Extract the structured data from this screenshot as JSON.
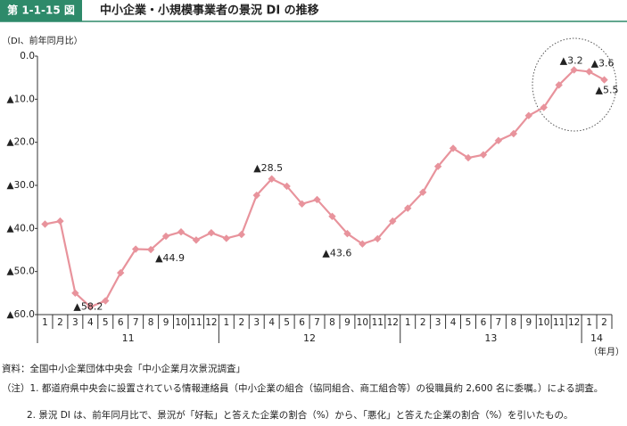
{
  "figure_label": "第 1-1-15 図",
  "chart_data": {
    "type": "line",
    "title": "中小企業・小規模事業者の景況 DI の推移",
    "y_label": "（DI、前年同月比）",
    "x_label": "（年月）",
    "categories": [
      "1",
      "2",
      "3",
      "4",
      "5",
      "6",
      "7",
      "8",
      "9",
      "10",
      "11",
      "12",
      "1",
      "2",
      "3",
      "4",
      "5",
      "6",
      "7",
      "8",
      "9",
      "10",
      "11",
      "12",
      "1",
      "2",
      "3",
      "4",
      "5",
      "6",
      "7",
      "8",
      "9",
      "10",
      "11",
      "12",
      "1",
      "2"
    ],
    "year_labels": [
      "11",
      "12",
      "13",
      "14"
    ],
    "series": [
      {
        "color": "#e8939c",
        "values": [
          -39,
          -38.3,
          -55,
          -58.2,
          -56.8,
          -50.3,
          -44.8,
          -44.9,
          -41.8,
          -40.8,
          -42.7,
          -41,
          -42.3,
          -41.4,
          -32.3,
          -28.5,
          -30.2,
          -34.3,
          -33.3,
          -37.2,
          -41.2,
          -43.6,
          -42.4,
          -38.3,
          -35.3,
          -31.6,
          -25.6,
          -21.4,
          -23.6,
          -22.9,
          -19.6,
          -18,
          -13.8,
          -11.9,
          -6.7,
          -3.2,
          -3.6,
          -5.5
        ],
        "value_labels": [
          null,
          null,
          null,
          "▲58.2",
          null,
          null,
          null,
          "▲44.9",
          null,
          null,
          null,
          null,
          null,
          null,
          null,
          "▲28.5",
          null,
          null,
          null,
          null,
          null,
          "▲43.6",
          null,
          null,
          null,
          null,
          null,
          null,
          null,
          null,
          null,
          null,
          null,
          null,
          null,
          "▲3.2",
          "▲3.6",
          "▲5.5"
        ]
      }
    ],
    "ylim": [
      -60,
      0
    ],
    "yticks": [
      {
        "value": 0,
        "label": "0.0"
      },
      {
        "value": -10,
        "label": "▲10.0"
      },
      {
        "value": -20,
        "label": "▲20.0"
      },
      {
        "value": -30,
        "label": "▲30.0"
      },
      {
        "value": -40,
        "label": "▲40.0"
      },
      {
        "value": -50,
        "label": "▲50.0"
      },
      {
        "value": -60,
        "label": "▲60.0"
      }
    ],
    "grid": false
  },
  "notes": [
    "資料：全国中小企業団体中央会「中小企業月次景況調査」",
    "（注）1.  都道府県中央会に設置されている情報連絡員（中小企業の組合（協同組合、商工組合等）の役職員約 2,600 名に委嘱。）による調査。",
    "2.  景況 DI は、前年同月比で、景況が「好転」と答えた企業の割合（%）から、「悪化」と答えた企業の割合（%）を引いたもの。"
  ]
}
